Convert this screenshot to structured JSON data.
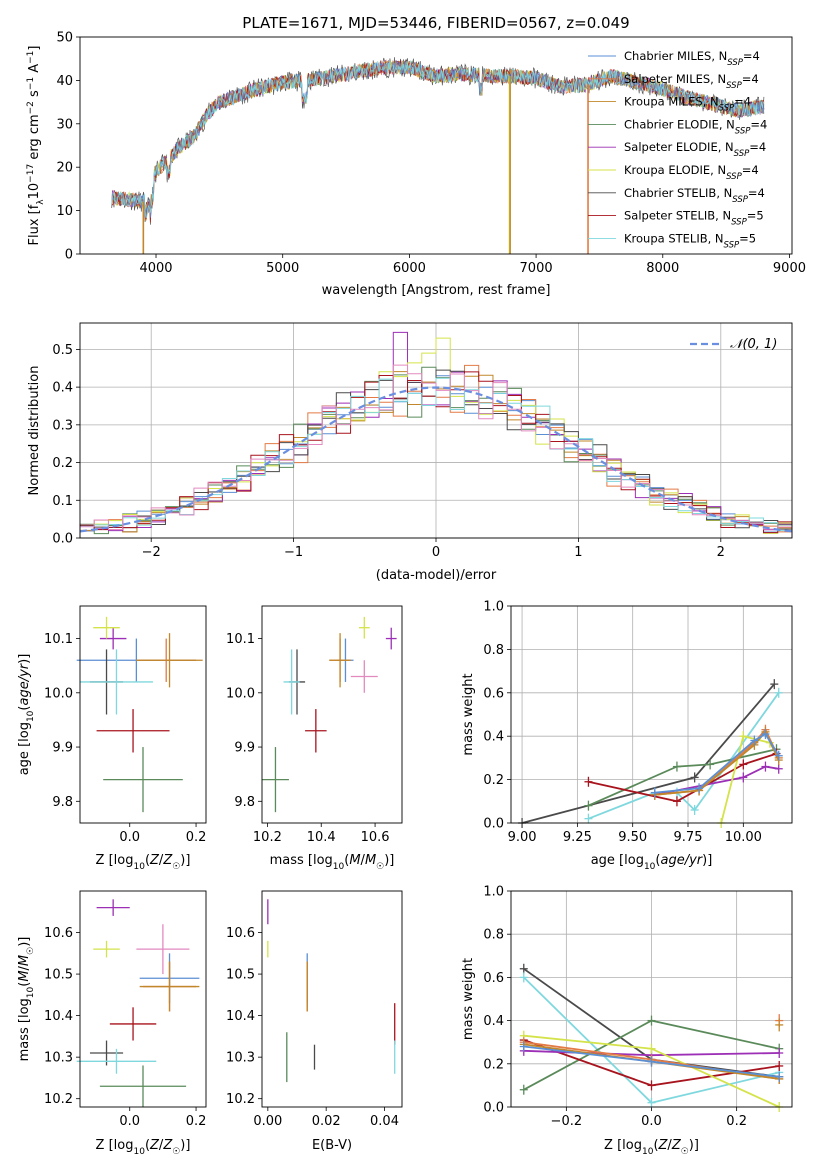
{
  "figure": {
    "title": "PLATE=1671, MJD=53446, FIBERID=0567, z=0.049"
  },
  "series_styles": [
    {
      "name": "Chabrier MILES, N$_{SSP}$=4",
      "label": "Chabrier MILES, N",
      "sub": "SSP",
      "tail": "=4",
      "color": "#5b8fd4"
    },
    {
      "name": "Salpeter MILES, N$_{SSP}$=4",
      "label": "Salpeter MILES, N",
      "sub": "SSP",
      "tail": "=4",
      "color": "#e47a45"
    },
    {
      "name": "Kroupa MILES, N$_{SSP}$=4",
      "label": "Kroupa MILES, N",
      "sub": "SSP",
      "tail": "=4",
      "color": "#c1872a"
    },
    {
      "name": "Chabrier ELODIE, N$_{SSP}$=4",
      "label": "Chabrier ELODIE, N",
      "sub": "SSP",
      "tail": "=4",
      "color": "#5a8a5a"
    },
    {
      "name": "Salpeter ELODIE, N$_{SSP}$=4",
      "label": "Salpeter ELODIE, N",
      "sub": "SSP",
      "tail": "=4",
      "color": "#9c2fb5"
    },
    {
      "name": "Kroupa ELODIE, N$_{SSP}$=4",
      "label": "Kroupa ELODIE, N",
      "sub": "SSP",
      "tail": "=4",
      "color": "#d4e34a"
    },
    {
      "name": "Chabrier STELIB, N$_{SSP}$=4",
      "label": "Chabrier STELIB, N",
      "sub": "SSP",
      "tail": "=4",
      "color": "#4a4a4a"
    },
    {
      "name": "Salpeter STELIB, N$_{SSP}$=5",
      "label": "Salpeter STELIB, N",
      "sub": "SSP",
      "tail": "=5",
      "color": "#a8141e"
    },
    {
      "name": "Kroupa STELIB, N$_{SSP}$=5",
      "label": "Kroupa STELIB, N",
      "sub": "SSP",
      "tail": "=5",
      "color": "#7fd8de"
    }
  ],
  "chart_data": [
    {
      "type": "line",
      "id": "spectrum",
      "xlabel": "wavelength [Angstrom, rest frame]",
      "ylabel": "Flux [f_λ 10^-17 erg cm^-2 s^-1 A^-1]",
      "xlim": [
        3400,
        9020
      ],
      "ylim": [
        0,
        50
      ],
      "xticks": [
        4000,
        5000,
        6000,
        7000,
        8000,
        9000
      ],
      "yticks": [
        0,
        10,
        20,
        30,
        40,
        50
      ],
      "grid": false,
      "legend": "right",
      "continuum": {
        "x": [
          3650,
          3800,
          3900,
          4000,
          4100,
          4200,
          4300,
          4400,
          4500,
          4600,
          4800,
          5000,
          5200,
          5400,
          5600,
          5800,
          6000,
          6200,
          6400,
          6600,
          6800,
          7000,
          7200,
          7400,
          7600,
          7800,
          8000,
          8200,
          8400,
          8600,
          8800
        ],
        "y": [
          13,
          12.5,
          12,
          19,
          22,
          25,
          27,
          32,
          35,
          36,
          38,
          39.5,
          40,
          41,
          42,
          43,
          43,
          41,
          41.5,
          41,
          41,
          40.5,
          38.5,
          39,
          41,
          39.5,
          38,
          36,
          34.5,
          33,
          34
        ]
      },
      "dropouts": [
        {
          "x": 3900,
          "color": "#c1872a"
        },
        {
          "x": 6790,
          "color": "#d4e34a"
        },
        {
          "x": 6795,
          "color": "#c1872a"
        },
        {
          "x": 7410,
          "color": "#e47a45"
        }
      ],
      "series_names": [
        "Chabrier MILES, N$_{SSP}$=4",
        "Salpeter MILES, N$_{SSP}$=4",
        "Kroupa MILES, N$_{SSP}$=4",
        "Chabrier ELODIE, N$_{SSP}$=4",
        "Salpeter ELODIE, N$_{SSP}$=4",
        "Kroupa ELODIE, N$_{SSP}$=4",
        "Chabrier STELIB, N$_{SSP}$=4",
        "Salpeter STELIB, N$_{SSP}$=5",
        "Kroupa STELIB, N$_{SSP}$=5"
      ]
    },
    {
      "type": "area",
      "id": "residuals",
      "xlabel": "(data-model)/error",
      "ylabel": "Normed distribution",
      "xlim": [
        -2.5,
        2.5
      ],
      "ylim": [
        0,
        0.57
      ],
      "xticks": [
        -2,
        -1,
        0,
        1,
        2
      ],
      "yticks": [
        0.0,
        0.1,
        0.2,
        0.3,
        0.4,
        0.5
      ],
      "grid": true,
      "legend": "top-right",
      "reference": {
        "name": "𝒩(0, 1)",
        "type": "gaussian",
        "mean": 0,
        "sigma": 1,
        "color": "#6b8fe0"
      },
      "histogram_bins": {
        "start": -2.5,
        "width": 0.1
      },
      "highlight_bins": [
        {
          "series": 4,
          "bin": 22,
          "value": 0.545
        },
        {
          "series": 5,
          "bin": 24,
          "value": 0.49
        },
        {
          "series": 5,
          "bin": 25,
          "value": 0.53
        }
      ]
    },
    {
      "type": "scatter",
      "id": "age-vs-Z",
      "xlabel": "Z [log10(Z/Z☉)]",
      "ylabel": "age [log10(age/yr)]",
      "xlim": [
        -0.15,
        0.23
      ],
      "ylim": [
        9.76,
        10.16
      ],
      "xticks": [
        0.0,
        0.2
      ],
      "xtick_labels": [
        "0.0",
        "0.2"
      ],
      "yticks": [
        9.8,
        9.9,
        10.0,
        10.1
      ],
      "grid": false,
      "points": [
        {
          "s": 0,
          "x": 0.02,
          "xerr": 0.18,
          "y": 10.06,
          "yerr": 0.04
        },
        {
          "s": 1,
          "x": 0.11,
          "xerr": 0.09,
          "y": 10.06,
          "yerr": 0.04
        },
        {
          "s": 2,
          "x": 0.12,
          "xerr": 0.1,
          "y": 10.06,
          "yerr": 0.05
        },
        {
          "s": 3,
          "x": 0.04,
          "xerr": 0.12,
          "y": 9.84,
          "yerr": 0.06
        },
        {
          "s": 4,
          "x": -0.05,
          "xerr": 0.04,
          "y": 10.1,
          "yerr": 0.02
        },
        {
          "s": 5,
          "x": -0.07,
          "xerr": 0.04,
          "y": 10.12,
          "yerr": 0.02
        },
        {
          "s": 6,
          "x": -0.07,
          "xerr": 0.05,
          "y": 10.02,
          "yerr": 0.06
        },
        {
          "s": 7,
          "x": 0.01,
          "xerr": 0.11,
          "y": 9.93,
          "yerr": 0.04
        },
        {
          "s": 8,
          "x": -0.04,
          "xerr": 0.11,
          "y": 10.02,
          "yerr": 0.06
        }
      ]
    },
    {
      "type": "scatter",
      "id": "age-vs-mass",
      "xlabel": "mass [log10(M/M☉)]",
      "ylabel": "",
      "xlim": [
        10.18,
        10.7
      ],
      "ylim": [
        9.76,
        10.16
      ],
      "xticks": [
        10.2,
        10.4,
        10.6
      ],
      "yticks": [
        9.8,
        9.9,
        10.0,
        10.1
      ],
      "grid": false,
      "points": [
        {
          "s": 0,
          "x": 10.49,
          "xerr": 0.03,
          "y": 10.06,
          "yerr": 0.04
        },
        {
          "s": 1,
          "x": 10.47,
          "xerr": 0.04,
          "y": 10.06,
          "yerr": 0.04
        },
        {
          "s": 2,
          "x": 10.47,
          "xerr": 0.04,
          "y": 10.06,
          "yerr": 0.05
        },
        {
          "s": 3,
          "x": 10.23,
          "xerr": 0.05,
          "y": 9.84,
          "yerr": 0.06
        },
        {
          "s": 4,
          "x": 10.66,
          "xerr": 0.02,
          "y": 10.1,
          "yerr": 0.02
        },
        {
          "s": 5,
          "x": 10.56,
          "xerr": 0.02,
          "y": 10.12,
          "yerr": 0.02
        },
        {
          "s": 6,
          "x": 10.31,
          "xerr": 0.03,
          "y": 10.02,
          "yerr": 0.06
        },
        {
          "s": 7,
          "x": 10.38,
          "xerr": 0.04,
          "y": 9.93,
          "yerr": 0.04
        },
        {
          "s": 8,
          "x": 10.29,
          "xerr": 0.03,
          "y": 10.02,
          "yerr": 0.06
        },
        {
          "s": 0,
          "x": 10.56,
          "xerr": 0.05,
          "y": 10.03,
          "yerr": 0.03,
          "color_override": "#e28ac0"
        }
      ]
    },
    {
      "type": "line",
      "id": "massweight-vs-age",
      "xlabel": "age [log10(age/yr)]",
      "ylabel": "mass weight",
      "xlim": [
        8.95,
        10.22
      ],
      "ylim": [
        0.0,
        1.0
      ],
      "xticks": [
        9.0,
        9.25,
        9.5,
        9.75,
        10.0
      ],
      "xtick_labels": [
        "9.00",
        "9.25",
        "9.50",
        "9.75",
        "10.00"
      ],
      "yticks": [
        0.0,
        0.2,
        0.4,
        0.6,
        0.8,
        1.0
      ],
      "grid": true,
      "series": [
        {
          "s": 6,
          "x": [
            9.0,
            9.78,
            10.14
          ],
          "y": [
            0.0,
            0.21,
            0.64
          ]
        },
        {
          "s": 8,
          "x": [
            9.3,
            9.6,
            9.7,
            9.78,
            10.16
          ],
          "y": [
            0.02,
            0.14,
            0.14,
            0.06,
            0.6
          ]
        },
        {
          "s": 3,
          "x": [
            9.3,
            9.7,
            9.85,
            10.15
          ],
          "y": [
            0.08,
            0.26,
            0.27,
            0.34
          ]
        },
        {
          "s": 7,
          "x": [
            9.3,
            9.7,
            10.0,
            10.15
          ],
          "y": [
            0.19,
            0.1,
            0.27,
            0.32
          ]
        },
        {
          "s": 4,
          "x": [
            9.6,
            10.0,
            10.1,
            10.16
          ],
          "y": [
            0.13,
            0.21,
            0.26,
            0.25
          ]
        },
        {
          "s": 5,
          "x": [
            9.9,
            10.0,
            10.12,
            10.16
          ],
          "y": [
            0.0,
            0.4,
            0.37,
            0.3
          ]
        },
        {
          "s": 1,
          "x": [
            9.6,
            9.8,
            10.05,
            10.1,
            10.16
          ],
          "y": [
            0.13,
            0.15,
            0.37,
            0.43,
            0.3
          ]
        },
        {
          "s": 2,
          "x": [
            9.6,
            9.8,
            10.05,
            10.1,
            10.16
          ],
          "y": [
            0.13,
            0.15,
            0.36,
            0.42,
            0.29
          ]
        },
        {
          "s": 0,
          "x": [
            9.6,
            9.8,
            10.05,
            10.1,
            10.16
          ],
          "y": [
            0.14,
            0.16,
            0.38,
            0.41,
            0.31
          ]
        }
      ]
    },
    {
      "type": "scatter",
      "id": "mass-vs-Z",
      "xlabel": "Z [log10(Z/Z☉)]",
      "ylabel": "mass [log10(M/M☉)]",
      "xlim": [
        -0.15,
        0.23
      ],
      "ylim": [
        10.18,
        10.7
      ],
      "xticks": [
        0.0,
        0.2
      ],
      "xtick_labels": [
        "0.0",
        "0.2"
      ],
      "yticks": [
        10.2,
        10.3,
        10.4,
        10.5,
        10.6
      ],
      "grid": false,
      "points": [
        {
          "s": 0,
          "x": 0.12,
          "xerr": 0.09,
          "y": 10.49,
          "yerr": 0.06
        },
        {
          "s": 1,
          "x": 0.12,
          "xerr": 0.08,
          "y": 10.47,
          "yerr": 0.06
        },
        {
          "s": 2,
          "x": 0.12,
          "xerr": 0.09,
          "y": 10.47,
          "yerr": 0.06
        },
        {
          "s": 3,
          "x": 0.04,
          "xerr": 0.13,
          "y": 10.23,
          "yerr": 0.05
        },
        {
          "s": 4,
          "x": -0.05,
          "xerr": 0.05,
          "y": 10.66,
          "yerr": 0.02
        },
        {
          "s": 5,
          "x": -0.07,
          "xerr": 0.04,
          "y": 10.56,
          "yerr": 0.02
        },
        {
          "s": 6,
          "x": -0.07,
          "xerr": 0.05,
          "y": 10.31,
          "yerr": 0.03
        },
        {
          "s": 7,
          "x": 0.01,
          "xerr": 0.07,
          "y": 10.38,
          "yerr": 0.04
        },
        {
          "s": 8,
          "x": -0.04,
          "xerr": 0.12,
          "y": 10.29,
          "yerr": 0.03
        },
        {
          "s": 0,
          "x": 0.1,
          "xerr": 0.08,
          "y": 10.56,
          "yerr": 0.06,
          "color_override": "#e28ac0"
        }
      ]
    },
    {
      "type": "scatter",
      "id": "mass-vs-EBV",
      "xlabel": "E(B-V)",
      "ylabel": "",
      "xlim": [
        -0.002,
        0.046
      ],
      "ylim": [
        10.18,
        10.7
      ],
      "xticks": [
        0.0,
        0.02,
        0.04
      ],
      "xtick_labels": [
        "0.00",
        "0.02",
        "0.04"
      ],
      "yticks": [
        10.2,
        10.3,
        10.4,
        10.5,
        10.6
      ],
      "grid": false,
      "points": [
        {
          "s": 0,
          "x": 0.0135,
          "xerr": 0,
          "y": 10.49,
          "yerr": 0.06
        },
        {
          "s": 1,
          "x": 0.0135,
          "xerr": 0,
          "y": 10.47,
          "yerr": 0.06
        },
        {
          "s": 2,
          "x": 0.0135,
          "xerr": 0,
          "y": 10.47,
          "yerr": 0.06
        },
        {
          "s": 3,
          "x": 0.0065,
          "xerr": 0,
          "y": 10.3,
          "yerr": 0.06
        },
        {
          "s": 4,
          "x": 0.0,
          "xerr": 0,
          "y": 10.65,
          "yerr": 0.03
        },
        {
          "s": 5,
          "x": 0.0,
          "xerr": 0,
          "y": 10.56,
          "yerr": 0.02
        },
        {
          "s": 6,
          "x": 0.016,
          "xerr": 0,
          "y": 10.3,
          "yerr": 0.03
        },
        {
          "s": 7,
          "x": 0.0435,
          "xerr": 0,
          "y": 10.38,
          "yerr": 0.05
        },
        {
          "s": 8,
          "x": 0.0435,
          "xerr": 0,
          "y": 10.3,
          "yerr": 0.04
        }
      ]
    },
    {
      "type": "line",
      "id": "massweight-vs-Z",
      "xlabel": "Z [log10(Z/Z☉)]",
      "ylabel": "mass weight",
      "xlim": [
        -0.33,
        0.33
      ],
      "ylim": [
        0.0,
        1.0
      ],
      "xticks": [
        -0.2,
        0.0,
        0.2
      ],
      "xtick_labels": [
        "−0.2",
        "0.0",
        "0.2"
      ],
      "yticks": [
        0.0,
        0.2,
        0.4,
        0.6,
        0.8,
        1.0
      ],
      "grid": true,
      "series": [
        {
          "s": 6,
          "x": [
            -0.3,
            0.0,
            0.3
          ],
          "y": [
            0.64,
            0.22,
            0.14
          ]
        },
        {
          "s": 8,
          "x": [
            -0.3,
            0.0,
            0.3
          ],
          "y": [
            0.6,
            0.02,
            0.16
          ]
        },
        {
          "s": 3,
          "x": [
            -0.3,
            0.0,
            0.3
          ],
          "y": [
            0.08,
            0.4,
            0.27
          ]
        },
        {
          "s": 7,
          "x": [
            -0.3,
            0.0,
            0.3
          ],
          "y": [
            0.31,
            0.1,
            0.19
          ]
        },
        {
          "s": 4,
          "x": [
            -0.3,
            0.0,
            0.3
          ],
          "y": [
            0.26,
            0.24,
            0.25
          ]
        },
        {
          "s": 5,
          "x": [
            -0.3,
            0.0,
            0.3
          ],
          "y": [
            0.33,
            0.27,
            0.0
          ]
        },
        {
          "s": 1,
          "x": [
            -0.3,
            0.0,
            0.3
          ],
          "y": [
            0.3,
            0.22,
            0.13
          ]
        },
        {
          "s": 2,
          "x": [
            -0.3,
            0.0,
            0.3
          ],
          "y": [
            0.29,
            0.21,
            0.13
          ]
        },
        {
          "s": 0,
          "x": [
            -0.3,
            0.0,
            0.3
          ],
          "y": [
            0.28,
            0.21,
            0.14
          ]
        }
      ],
      "extra_errors": [
        {
          "s": 1,
          "x": 0.3,
          "y": 0.4,
          "yerr": 0.03
        },
        {
          "s": 2,
          "x": 0.3,
          "y": 0.38,
          "yerr": 0.03
        }
      ]
    }
  ]
}
